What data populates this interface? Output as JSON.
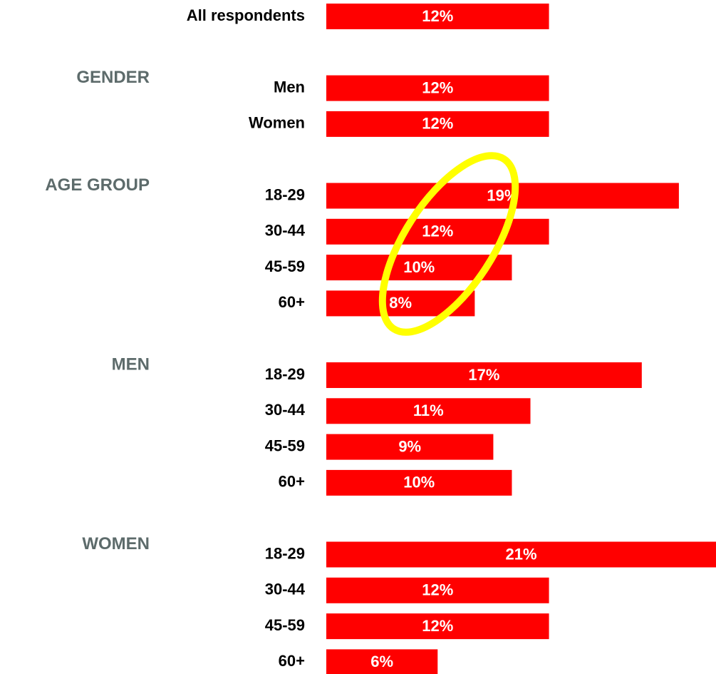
{
  "chart_data": {
    "type": "bar",
    "orientation": "horizontal",
    "color": "#ff0000",
    "xlim": [
      0,
      21
    ],
    "overall": {
      "category": "All respondents",
      "value": 12,
      "value_label": "12%"
    },
    "groups": [
      {
        "name": "GENDER",
        "categories": [
          "Men",
          "Women"
        ],
        "values": [
          12,
          12
        ],
        "value_labels": [
          "12%",
          "12%"
        ]
      },
      {
        "name": "AGE GROUP",
        "categories": [
          "18-29",
          "30-44",
          "45-59",
          "60+"
        ],
        "values": [
          19,
          12,
          10,
          8
        ],
        "value_labels": [
          "19%",
          "12%",
          "10%",
          "8%"
        ]
      },
      {
        "name": "MEN",
        "categories": [
          "18-29",
          "30-44",
          "45-59",
          "60+"
        ],
        "values": [
          17,
          11,
          9,
          10
        ],
        "value_labels": [
          "17%",
          "11%",
          "9%",
          "10%"
        ]
      },
      {
        "name": "WOMEN",
        "categories": [
          "18-29",
          "30-44",
          "45-59",
          "60+"
        ],
        "values": [
          21,
          12,
          12,
          6
        ],
        "value_labels": [
          "21%",
          "12%",
          "12%",
          "6%"
        ]
      }
    ]
  }
}
